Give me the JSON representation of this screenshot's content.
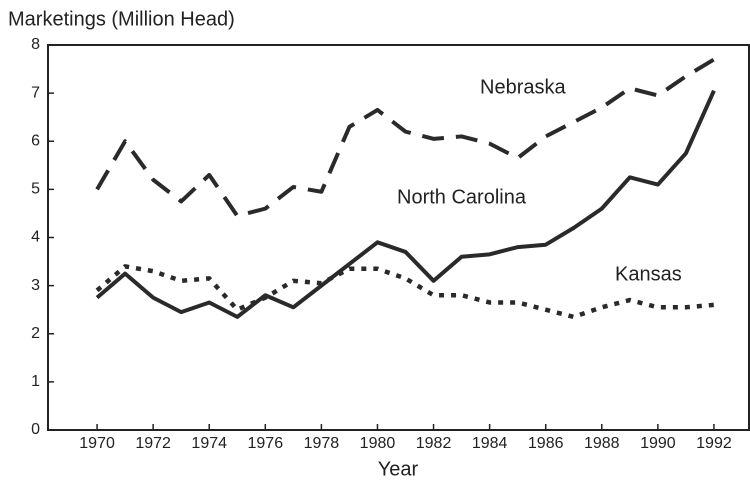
{
  "chart_data": {
    "type": "line",
    "title": "Marketings (Million Head)",
    "xlabel": "Year",
    "x": [
      1970,
      1971,
      1972,
      1973,
      1974,
      1975,
      1976,
      1977,
      1978,
      1979,
      1980,
      1981,
      1982,
      1983,
      1984,
      1985,
      1986,
      1987,
      1988,
      1989,
      1990,
      1991,
      1992
    ],
    "series": [
      {
        "name": "Nebraska",
        "color": "#2a2a2a",
        "dash": "dashed",
        "values": [
          5.0,
          6.0,
          5.2,
          4.75,
          5.3,
          4.45,
          4.6,
          5.05,
          4.95,
          6.3,
          6.65,
          6.2,
          6.05,
          6.1,
          5.95,
          5.65,
          6.1,
          6.4,
          6.7,
          7.1,
          6.95,
          7.35,
          7.7
        ]
      },
      {
        "name": "North Carolina",
        "color": "#2a2a2a",
        "dash": "solid",
        "values": [
          2.75,
          3.25,
          2.75,
          2.45,
          2.65,
          2.35,
          2.8,
          2.55,
          3.0,
          3.45,
          3.9,
          3.7,
          3.1,
          3.6,
          3.65,
          3.8,
          3.85,
          4.2,
          4.6,
          5.25,
          5.1,
          5.75,
          7.05
        ]
      },
      {
        "name": "Kansas",
        "color": "#2a2a2a",
        "dash": "dotted",
        "values": [
          2.9,
          3.4,
          3.3,
          3.1,
          3.15,
          2.5,
          2.75,
          3.1,
          3.05,
          3.35,
          3.35,
          3.15,
          2.8,
          2.8,
          2.65,
          2.65,
          2.5,
          2.35,
          2.55,
          2.7,
          2.55,
          2.55,
          2.6
        ]
      }
    ],
    "xlim": [
      1968.25,
      1993.25
    ],
    "xticks": [
      1970,
      1972,
      1974,
      1976,
      1978,
      1980,
      1982,
      1984,
      1986,
      1988,
      1990,
      1992
    ],
    "ylim": [
      0,
      8
    ],
    "yticks": [
      0,
      1,
      2,
      3,
      4,
      5,
      6,
      7,
      8
    ],
    "grid": false
  }
}
